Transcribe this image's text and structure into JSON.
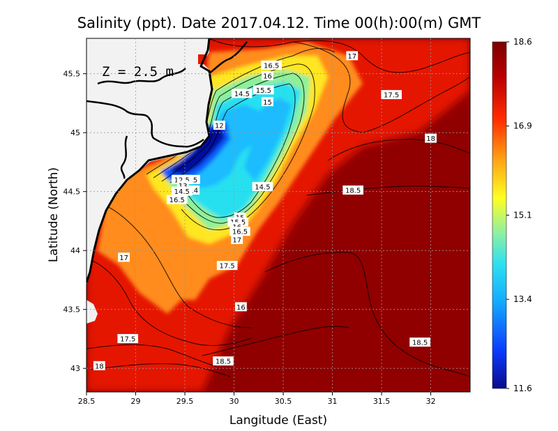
{
  "title": "Salinity (ppt). Date 2017.04.12. Time 00(h):00(m) GMT",
  "depth_label": "Z = 2.5 m",
  "axes": {
    "x_label": "Langitude (East)",
    "y_label": "Latitude (North)",
    "x_ticks": [
      "28.5",
      "29",
      "29.5",
      "30",
      "30.5",
      "31",
      "31.5",
      "32"
    ],
    "y_ticks": [
      "43",
      "43.5",
      "44",
      "44.5",
      "45",
      "45.5"
    ],
    "x_range": [
      28.5,
      32.4
    ],
    "y_range": [
      42.8,
      45.8
    ]
  },
  "colorbar": {
    "min": 11.6,
    "max": 18.6,
    "tick_labels": [
      "18.6",
      "16.9",
      "15.1",
      "13.4",
      "11.6"
    ],
    "tick_values": [
      18.6,
      16.9,
      15.1,
      13.4,
      11.6
    ],
    "stops": [
      "#0a0a8c",
      "#0a3cff",
      "#14aaff",
      "#2ee0f0",
      "#8ff0a0",
      "#ffff20",
      "#ffa214",
      "#ff2a00",
      "#b80000",
      "#7c0000"
    ]
  },
  "colors": {
    "land": "#f2f2f2",
    "coast": "#000000",
    "deep_red": "#900000",
    "red": "#e51800",
    "orange": "#ff8c1a",
    "yellow": "#ffe620",
    "green": "#8ff09a",
    "cyan": "#26e0f0",
    "light_blue": "#1ebcff",
    "blue": "#0a5aff",
    "navy": "#050aa0"
  },
  "contour_labels": [
    {
      "text": "17",
      "lon": 31.2,
      "lat": 45.65
    },
    {
      "text": "16.5",
      "lon": 30.38,
      "lat": 45.57
    },
    {
      "text": "16",
      "lon": 30.34,
      "lat": 45.48
    },
    {
      "text": "15.5",
      "lon": 30.3,
      "lat": 45.36
    },
    {
      "text": "14.5",
      "lon": 30.08,
      "lat": 45.33
    },
    {
      "text": "15",
      "lon": 30.34,
      "lat": 45.26
    },
    {
      "text": "17.5",
      "lon": 31.6,
      "lat": 45.32
    },
    {
      "text": "12",
      "lon": 29.85,
      "lat": 45.06
    },
    {
      "text": "18",
      "lon": 32.0,
      "lat": 44.95
    },
    {
      "text": "13.5",
      "lon": 29.55,
      "lat": 44.6
    },
    {
      "text": "12.5",
      "lon": 29.47,
      "lat": 44.6
    },
    {
      "text": "13",
      "lon": 29.48,
      "lat": 44.55
    },
    {
      "text": "14",
      "lon": 29.59,
      "lat": 44.51
    },
    {
      "text": "14.5",
      "lon": 29.47,
      "lat": 44.5
    },
    {
      "text": "16.5",
      "lon": 29.42,
      "lat": 44.43
    },
    {
      "text": "14.5",
      "lon": 30.29,
      "lat": 44.54
    },
    {
      "text": "18.5",
      "lon": 31.21,
      "lat": 44.51
    },
    {
      "text": "15",
      "lon": 30.06,
      "lat": 44.28
    },
    {
      "text": "15.5",
      "lon": 30.04,
      "lat": 44.24
    },
    {
      "text": "16",
      "lon": 30.03,
      "lat": 44.2
    },
    {
      "text": "16.5",
      "lon": 30.06,
      "lat": 44.16
    },
    {
      "text": "17",
      "lon": 30.03,
      "lat": 44.09
    },
    {
      "text": "17",
      "lon": 28.88,
      "lat": 43.94
    },
    {
      "text": "17.5",
      "lon": 29.93,
      "lat": 43.87
    },
    {
      "text": "16",
      "lon": 30.07,
      "lat": 43.52
    },
    {
      "text": "17.5",
      "lon": 28.92,
      "lat": 43.25
    },
    {
      "text": "18.5",
      "lon": 31.89,
      "lat": 43.22
    },
    {
      "text": "18",
      "lon": 28.63,
      "lat": 43.02
    },
    {
      "text": "18.5",
      "lon": 29.89,
      "lat": 43.06
    }
  ]
}
